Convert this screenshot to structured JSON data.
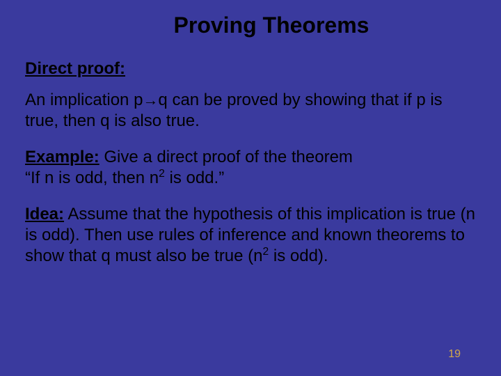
{
  "colors": {
    "background": "#3a3a9e",
    "text": "#000000",
    "pageNumber": "#d4a84a"
  },
  "typography": {
    "family": "Comic Sans MS",
    "titleSize": 32,
    "bodySize": 24,
    "pageNumberSize": 16
  },
  "title": "Proving Theorems",
  "heading": "Direct proof:",
  "definition": {
    "prefix": "An implication p",
    "arrow": "→",
    "suffix": "q can be proved by showing that if p is true, then q is also true."
  },
  "example": {
    "label": "Example:",
    "text_before_quote": " Give a direct proof of the theorem ",
    "quote_part1": "“If n is odd, then n",
    "exponent1": "2",
    "quote_part2": " is odd.”"
  },
  "idea": {
    "label": "Idea:",
    "text_part1": " Assume that the hypothesis of this implication is true (n is odd). Then use rules of inference and known theorems to show that q must also be true (n",
    "exponent": "2",
    "text_part2": " is odd)."
  },
  "pageNumber": "19"
}
